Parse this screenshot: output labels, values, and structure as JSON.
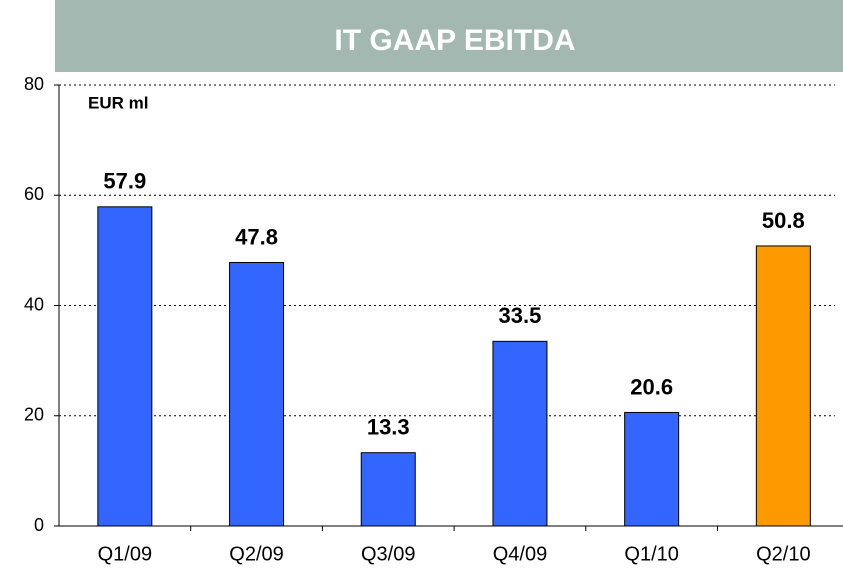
{
  "chart_data": {
    "type": "bar",
    "title": "IT GAAP EBITDA",
    "y_label": "EUR ml",
    "categories": [
      "Q1/09",
      "Q2/09",
      "Q3/09",
      "Q4/09",
      "Q1/10",
      "Q2/10"
    ],
    "values": [
      57.9,
      47.8,
      13.3,
      33.5,
      20.6,
      50.8
    ],
    "colors": [
      "#3366ff",
      "#3366ff",
      "#3366ff",
      "#3366ff",
      "#3366ff",
      "#ff9900"
    ],
    "ylim": [
      0,
      80
    ],
    "yticks": [
      0,
      20,
      40,
      60,
      80
    ],
    "grid": true
  }
}
